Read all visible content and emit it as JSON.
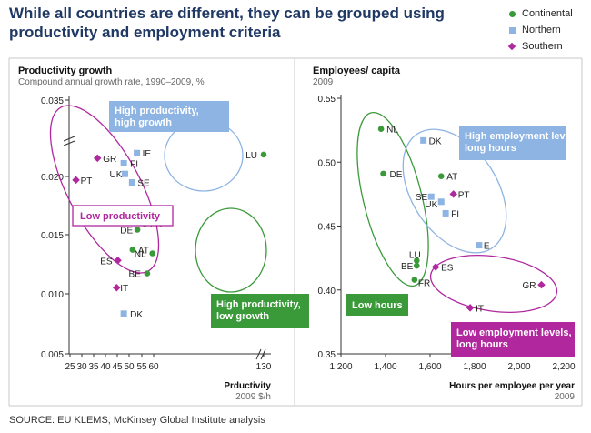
{
  "title": "While all countries are different, they can be grouped using productivity and employment criteria",
  "legend": {
    "placement": "top-right",
    "items": [
      {
        "label": "Continental",
        "color": "#3a9a3a",
        "shape": "circle"
      },
      {
        "label": "Northern",
        "color": "#8eb4e3",
        "shape": "square"
      },
      {
        "label": "Southern",
        "color": "#b0279e",
        "shape": "diamond"
      }
    ]
  },
  "source": "SOURCE: EU KLEMS; McKinsey Global Institute analysis",
  "chart_data": [
    {
      "type": "scatter",
      "title": "Productivity growth",
      "subtitle": "Compound annual growth rate, 1990–2009, %",
      "xlabel": "Prductivity",
      "xunit": "2009 $/h",
      "ylim": [
        0.005,
        0.035
      ],
      "yticks": [
        "0.035",
        "0.020",
        "0.015",
        "0.010",
        "0.005"
      ],
      "xticks": [
        "25",
        "30",
        "35",
        "40",
        "45",
        "50",
        "55",
        "60",
        "130"
      ],
      "axis_break": {
        "x": true,
        "y": true
      },
      "points": [
        {
          "label": "GR",
          "group": "Southern",
          "x": 36.5,
          "y": 0.0236
        },
        {
          "label": "PT",
          "group": "Southern",
          "x": 27.5,
          "y": 0.0197
        },
        {
          "label": "ES",
          "group": "Southern",
          "x": 45,
          "y": 0.0129
        },
        {
          "label": "IT",
          "group": "Southern",
          "x": 44.5,
          "y": 0.0106
        },
        {
          "label": "IE",
          "group": "Northern",
          "x": 53,
          "y": 0.0246
        },
        {
          "label": "FI",
          "group": "Northern",
          "x": 47.5,
          "y": 0.0226
        },
        {
          "label": "UK",
          "group": "Northern",
          "x": 48,
          "y": 0.0205
        },
        {
          "label": "SE",
          "group": "Northern",
          "x": 51,
          "y": 0.0195
        },
        {
          "label": "DK",
          "group": "Northern",
          "x": 47.5,
          "y": 0.0084
        },
        {
          "label": "LU",
          "group": "Continental",
          "x": 60.2,
          "y": 0.0243
        },
        {
          "label": "FR",
          "group": "Continental",
          "x": 56.3,
          "y": 0.016
        },
        {
          "label": "DE",
          "group": "Continental",
          "x": 53.2,
          "y": 0.0155
        },
        {
          "label": "AT",
          "group": "Continental",
          "x": 51.2,
          "y": 0.0138
        },
        {
          "label": "NL",
          "group": "Continental",
          "x": 59.5,
          "y": 0.0135
        },
        {
          "label": "BE",
          "group": "Continental",
          "x": 57.3,
          "y": 0.0118
        }
      ],
      "annotations": [
        {
          "text": "High productivity, high growth",
          "style": "northern"
        },
        {
          "text": "Low productivity",
          "style": "southern"
        },
        {
          "text": "High productivity, low growth",
          "style": "continental"
        }
      ]
    },
    {
      "type": "scatter",
      "title": "Employees/ capita",
      "subtitle": "2009",
      "xlabel": "Hours per employee per year",
      "xunit": "2009",
      "xlim": [
        1200,
        2200
      ],
      "ylim": [
        0.35,
        0.55
      ],
      "yticks": [
        "0.55",
        "0.50",
        "0.45",
        "0.40",
        "0.35"
      ],
      "xticks": [
        "1,200",
        "1,400",
        "1,600",
        "1,800",
        "2,000",
        "2,200"
      ],
      "points": [
        {
          "label": "NL",
          "group": "Continental",
          "x": 1380,
          "y": 0.526
        },
        {
          "label": "DE",
          "group": "Continental",
          "x": 1390,
          "y": 0.491
        },
        {
          "label": "AT",
          "group": "Continental",
          "x": 1650,
          "y": 0.489
        },
        {
          "label": "LU",
          "group": "Continental",
          "x": 1540,
          "y": 0.423
        },
        {
          "label": "BE",
          "group": "Continental",
          "x": 1540,
          "y": 0.419
        },
        {
          "label": "FR",
          "group": "Continental",
          "x": 1530,
          "y": 0.408
        },
        {
          "label": "DK",
          "group": "Northern",
          "x": 1570,
          "y": 0.517
        },
        {
          "label": "SE",
          "group": "Northern",
          "x": 1605,
          "y": 0.473
        },
        {
          "label": "UK",
          "group": "Northern",
          "x": 1650,
          "y": 0.469
        },
        {
          "label": "FI",
          "group": "Northern",
          "x": 1670,
          "y": 0.46
        },
        {
          "label": "E",
          "group": "Northern",
          "x": 1820,
          "y": 0.435
        },
        {
          "label": "PT",
          "group": "Southern",
          "x": 1705,
          "y": 0.475
        },
        {
          "label": "ES",
          "group": "Southern",
          "x": 1625,
          "y": 0.418
        },
        {
          "label": "IT",
          "group": "Southern",
          "x": 1780,
          "y": 0.386
        },
        {
          "label": "GR",
          "group": "Southern",
          "x": 2100,
          "y": 0.404
        }
      ],
      "annotations": [
        {
          "text": "High employment levels, long hours",
          "style": "northern"
        },
        {
          "text": "Low hours",
          "style": "continental"
        },
        {
          "text": "Low employment levels, long hours",
          "style": "southern"
        }
      ]
    }
  ]
}
